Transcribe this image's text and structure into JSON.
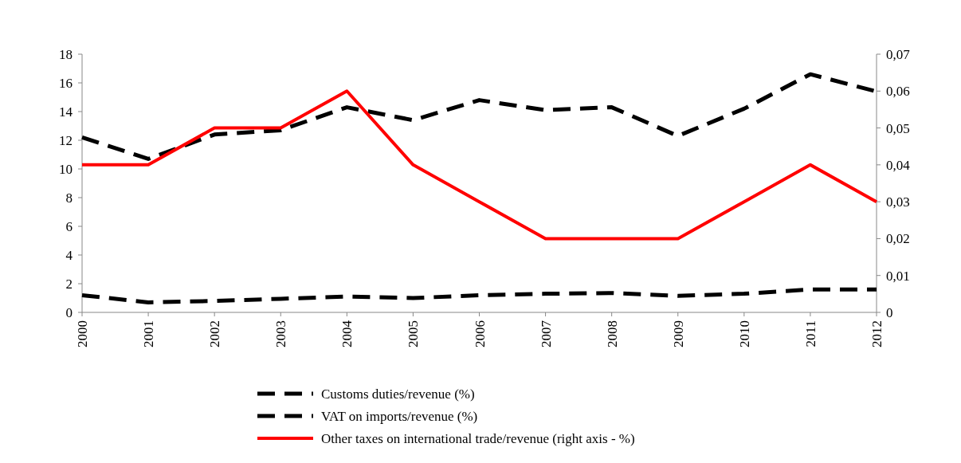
{
  "chart_data": {
    "type": "line",
    "categories": [
      "2000",
      "2001",
      "2002",
      "2003",
      "2004",
      "2005",
      "2006",
      "2007",
      "2008",
      "2009",
      "2010",
      "2011",
      "2012"
    ],
    "series": [
      {
        "name": "Customs duties/revenue (%)",
        "color": "#000000",
        "line_style": "dashed",
        "values": [
          1.2,
          0.7,
          0.8,
          0.95,
          1.1,
          1.0,
          1.2,
          1.3,
          1.35,
          1.15,
          1.3,
          1.6,
          1.6
        ]
      },
      {
        "name": "VAT on imports/revenue (%)",
        "color": "#000000",
        "line_style": "dashed",
        "values": [
          12.2,
          10.7,
          12.4,
          12.7,
          14.3,
          13.4,
          14.8,
          14.1,
          14.3,
          12.3,
          14.2,
          16.6,
          15.4
        ]
      },
      {
        "name": "Other taxes on international trade/revenue (right axis - %)",
        "color": "#ff0000",
        "line_style": "solid",
        "axis": "y2",
        "values": [
          0.04,
          0.04,
          0.05,
          0.05,
          0.06,
          0.04,
          0.03,
          0.02,
          0.02,
          0.02,
          0.03,
          0.04,
          0.03
        ]
      }
    ],
    "ylim": [
      0,
      18
    ],
    "yticks": [
      0,
      2,
      4,
      6,
      8,
      10,
      12,
      14,
      16,
      18
    ],
    "y2lim": [
      0,
      0.07
    ],
    "y2ticks": [
      0,
      {
        "value": 0.01,
        "label": "0,01"
      },
      {
        "value": 0.02,
        "label": "0,02"
      },
      {
        "value": 0.03,
        "label": "0,03"
      },
      {
        "value": 0.04,
        "label": "0,04"
      },
      {
        "value": 0.05,
        "label": "0,05"
      },
      {
        "value": 0.06,
        "label": "0,06"
      },
      {
        "value": 0.07,
        "label": "0,07"
      }
    ],
    "grid": false,
    "legend": "bottom",
    "marker": "none"
  }
}
